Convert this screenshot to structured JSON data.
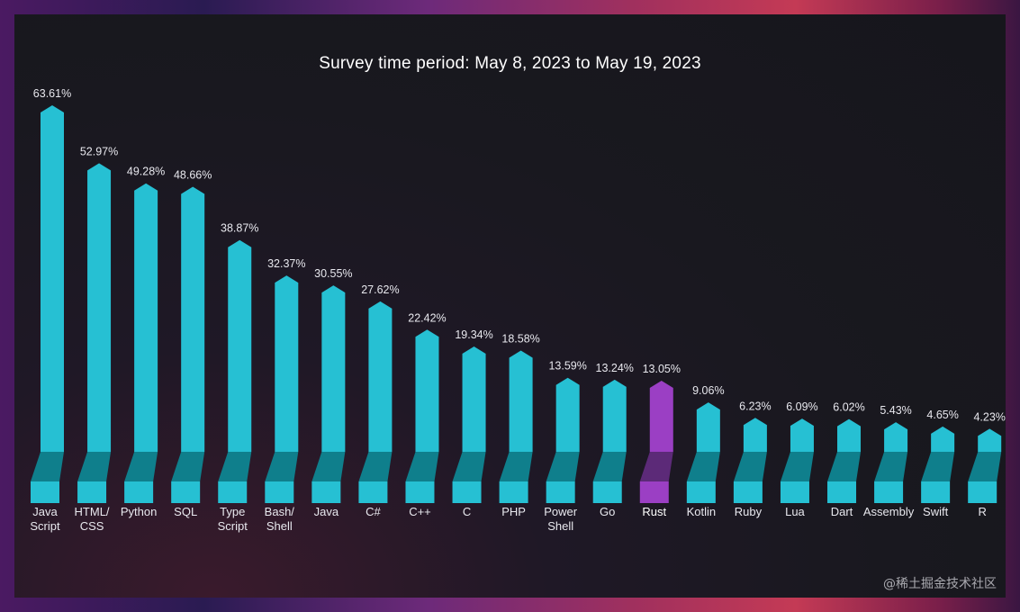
{
  "chart_data": {
    "type": "bar",
    "title": "Survey time period:  May 8, 2023 to May 19, 2023",
    "xlabel": "",
    "ylabel": "",
    "ylim": [
      0,
      63.61
    ],
    "categories": [
      [
        "Java",
        "Script"
      ],
      [
        "HTML/",
        "CSS"
      ],
      [
        "Python"
      ],
      [
        "SQL"
      ],
      [
        "Type",
        "Script"
      ],
      [
        "Bash/",
        "Shell"
      ],
      [
        "Java"
      ],
      [
        "C#"
      ],
      [
        "C++"
      ],
      [
        "C"
      ],
      [
        "PHP"
      ],
      [
        "Power",
        "Shell"
      ],
      [
        "Go"
      ],
      [
        "Rust"
      ],
      [
        "Kotlin"
      ],
      [
        "Ruby"
      ],
      [
        "Lua"
      ],
      [
        "Dart"
      ],
      [
        "Assembly"
      ],
      [
        "Swift"
      ],
      [
        "R"
      ]
    ],
    "values": [
      63.61,
      52.97,
      49.28,
      48.66,
      38.87,
      32.37,
      30.55,
      27.62,
      22.42,
      19.34,
      18.58,
      13.59,
      13.24,
      13.05,
      9.06,
      6.23,
      6.09,
      6.02,
      5.43,
      4.65,
      4.23
    ],
    "value_labels": [
      "63.61%",
      "52.97%",
      "49.28%",
      "48.66%",
      "38.87%",
      "32.37%",
      "30.55%",
      "27.62%",
      "22.42%",
      "19.34%",
      "18.58%",
      "13.59%",
      "13.24%",
      "13.05%",
      "9.06%",
      "6.23%",
      "6.09%",
      "6.02%",
      "5.43%",
      "4.65%",
      "4.23%"
    ],
    "highlight_index": 13,
    "colors": {
      "bar": "#26c0d3",
      "bar_dark": "#0f7f8c",
      "highlight": "#9b3fc4",
      "highlight_dark": "#5c2a78",
      "label": "#e8e8ee"
    }
  },
  "watermark": "@稀土掘金技术社区"
}
